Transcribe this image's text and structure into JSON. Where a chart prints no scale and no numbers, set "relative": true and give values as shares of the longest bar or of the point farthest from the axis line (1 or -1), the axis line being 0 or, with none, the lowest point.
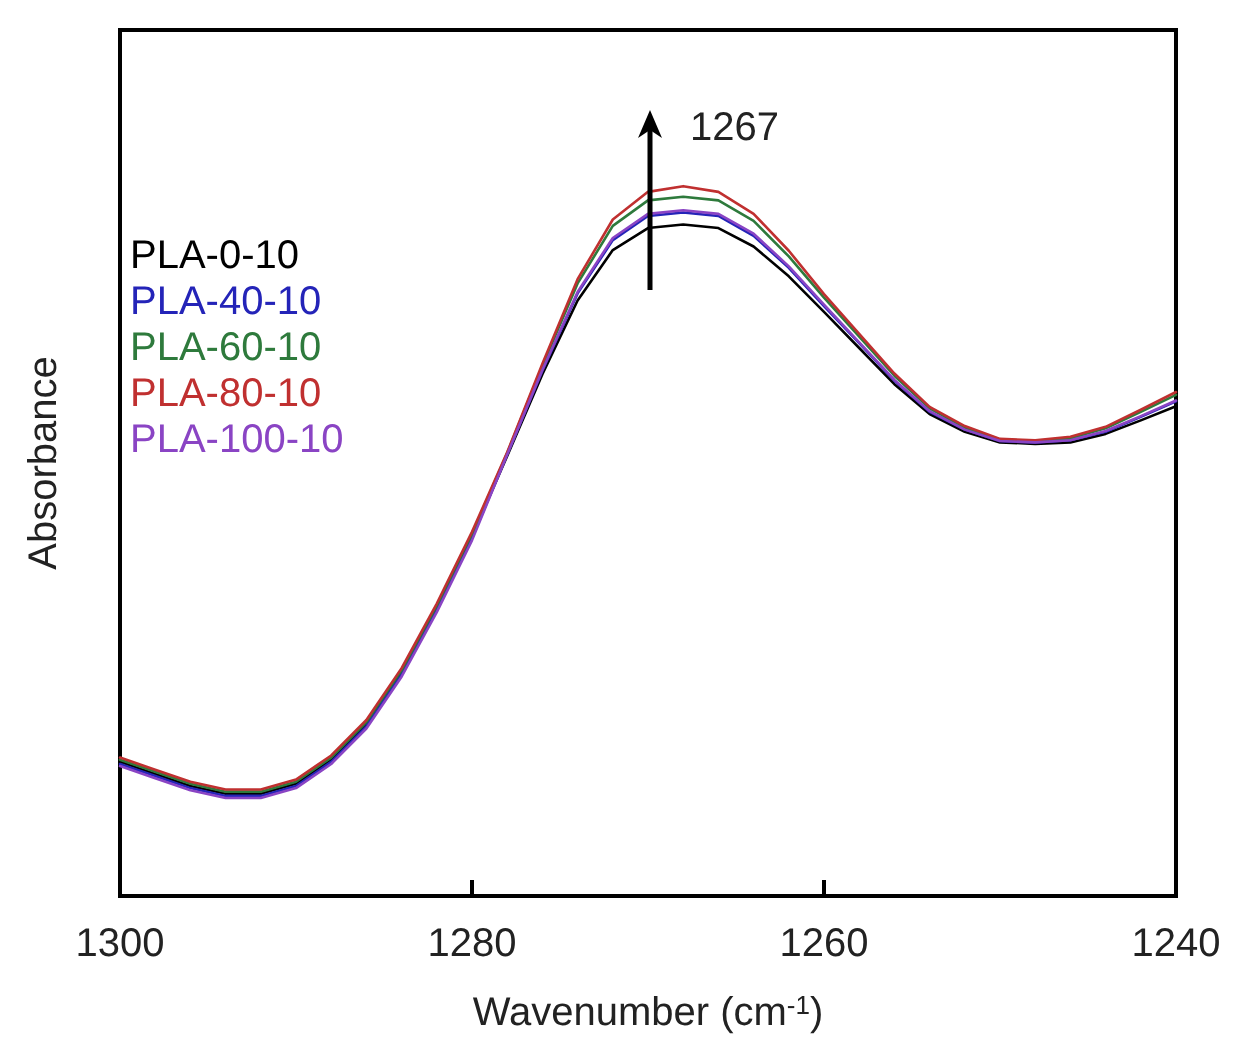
{
  "chart_data": {
    "type": "line",
    "relative": true,
    "xlabel": "Wavenumber (cm$^{-1}$)",
    "ylabel": "Absorbance",
    "xlim": [
      1300,
      1240
    ],
    "xticks": [
      1300,
      1280,
      1260,
      1240
    ],
    "legend": "top left",
    "marker": "none",
    "line_style": "solid",
    "grid": false,
    "annotations": [
      "1267"
    ],
    "x": [
      1300,
      1298,
      1296,
      1294,
      1292,
      1290,
      1288,
      1286,
      1284,
      1282,
      1280,
      1278,
      1276,
      1274,
      1272,
      1270,
      1268,
      1266,
      1264,
      1262,
      1260,
      1258,
      1256,
      1254,
      1252,
      1250,
      1248,
      1246,
      1244,
      1242,
      1240
    ],
    "series": [
      {
        "name": "PLA-0-10",
        "color": "#000000",
        "values": [
          0.189,
          0.172,
          0.155,
          0.144,
          0.144,
          0.158,
          0.192,
          0.242,
          0.315,
          0.406,
          0.507,
          0.62,
          0.735,
          0.839,
          0.91,
          0.941,
          0.946,
          0.941,
          0.915,
          0.873,
          0.823,
          0.772,
          0.721,
          0.679,
          0.654,
          0.639,
          0.637,
          0.639,
          0.651,
          0.67,
          0.69
        ]
      },
      {
        "name": "PLA-40-10",
        "color": "#2424b8",
        "values": [
          0.186,
          0.169,
          0.152,
          0.141,
          0.141,
          0.155,
          0.189,
          0.239,
          0.312,
          0.403,
          0.504,
          0.622,
          0.74,
          0.849,
          0.924,
          0.958,
          0.963,
          0.958,
          0.93,
          0.885,
          0.831,
          0.779,
          0.726,
          0.682,
          0.657,
          0.641,
          0.639,
          0.642,
          0.654,
          0.675,
          0.697
        ]
      },
      {
        "name": "PLA-60-10",
        "color": "#2e7a3c",
        "values": [
          0.192,
          0.175,
          0.158,
          0.147,
          0.147,
          0.161,
          0.195,
          0.245,
          0.318,
          0.409,
          0.51,
          0.624,
          0.747,
          0.863,
          0.944,
          0.98,
          0.985,
          0.98,
          0.951,
          0.901,
          0.843,
          0.788,
          0.733,
          0.687,
          0.66,
          0.643,
          0.641,
          0.645,
          0.659,
          0.682,
          0.706
        ]
      },
      {
        "name": "PLA-80-10",
        "color": "#c03030",
        "values": [
          0.195,
          0.178,
          0.161,
          0.15,
          0.15,
          0.164,
          0.198,
          0.248,
          0.321,
          0.412,
          0.513,
          0.625,
          0.75,
          0.869,
          0.953,
          0.992,
          1.0,
          0.992,
          0.961,
          0.909,
          0.848,
          0.792,
          0.736,
          0.689,
          0.662,
          0.644,
          0.642,
          0.647,
          0.661,
          0.685,
          0.71
        ]
      },
      {
        "name": "PLA-100-10",
        "color": "#8a44c4",
        "values": [
          0.183,
          0.166,
          0.149,
          0.138,
          0.138,
          0.152,
          0.186,
          0.236,
          0.309,
          0.4,
          0.501,
          0.622,
          0.741,
          0.851,
          0.927,
          0.961,
          0.966,
          0.961,
          0.933,
          0.887,
          0.833,
          0.78,
          0.727,
          0.683,
          0.657,
          0.641,
          0.639,
          0.642,
          0.655,
          0.676,
          0.698
        ]
      }
    ]
  }
}
